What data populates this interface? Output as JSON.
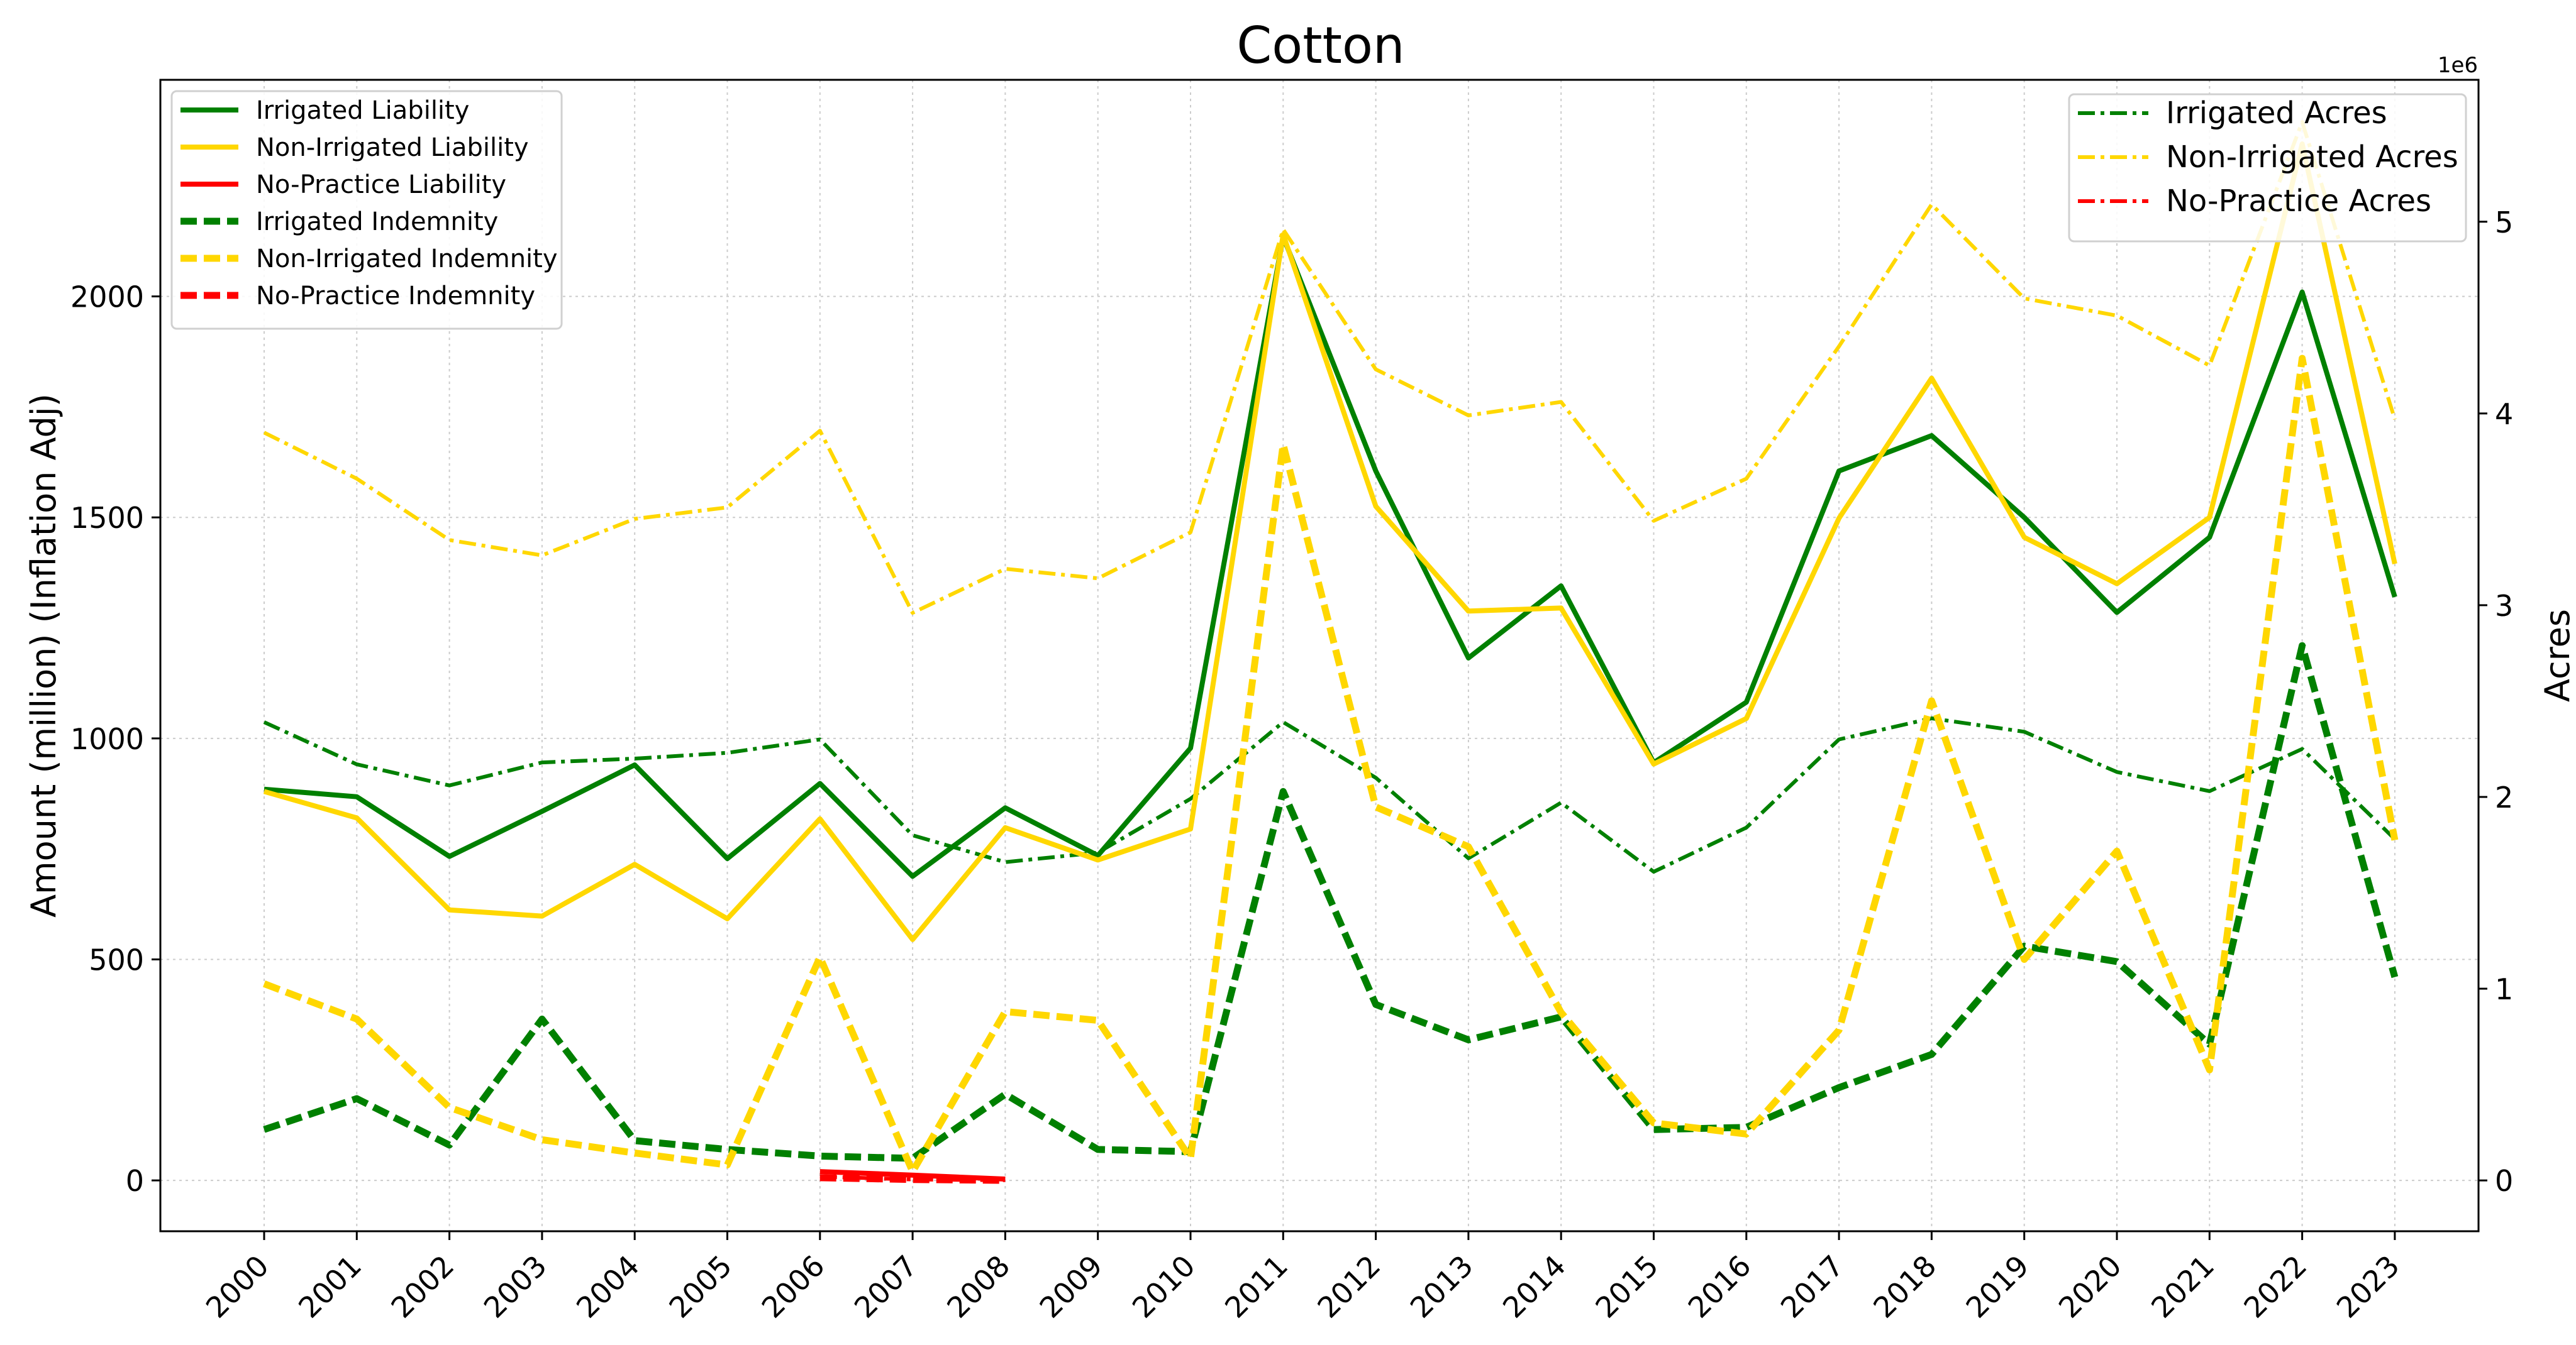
{
  "chart_data": {
    "type": "line",
    "title": "Cotton",
    "xlabel": "",
    "ylabel_left": "Amount (million) (Inflation Adj)",
    "ylabel_right": "Acres",
    "right_axis_multiplier": "1e6",
    "categories": [
      "2000",
      "2001",
      "2002",
      "2003",
      "2004",
      "2005",
      "2006",
      "2007",
      "2008",
      "2009",
      "2010",
      "2011",
      "2012",
      "2013",
      "2014",
      "2015",
      "2016",
      "2017",
      "2018",
      "2019",
      "2020",
      "2021",
      "2022",
      "2023"
    ],
    "ylim_left": [
      -115,
      2490
    ],
    "ylim_right": [
      -265000,
      5740000
    ],
    "left_ticks": [
      0,
      500,
      1000,
      1500,
      2000
    ],
    "right_ticks": [
      0,
      1000000,
      2000000,
      3000000,
      4000000,
      5000000
    ],
    "right_tick_labels": [
      "0",
      "1",
      "2",
      "3",
      "4",
      "5"
    ],
    "grid": true,
    "legend_left_position": "top-left",
    "legend_right_position": "top-right",
    "series_left": [
      {
        "name": "Irrigated Liability",
        "color": "#008000",
        "style": "solid",
        "values": [
          885,
          868,
          733,
          835,
          940,
          728,
          898,
          688,
          843,
          735,
          978,
          2135,
          1605,
          1182,
          1345,
          945,
          1082,
          1605,
          1685,
          1500,
          1285,
          1455,
          2010,
          1320
        ]
      },
      {
        "name": "Non-Irrigated Liability",
        "color": "#FFD700",
        "style": "solid",
        "values": [
          880,
          820,
          612,
          598,
          715,
          592,
          818,
          545,
          798,
          725,
          795,
          2140,
          1525,
          1288,
          1295,
          942,
          1045,
          1498,
          1815,
          1455,
          1350,
          1500,
          2345,
          1395
        ]
      },
      {
        "name": "No-Practice Liability",
        "color": "#FF0000",
        "style": "solid",
        "offset": 6,
        "values": [
          20,
          12,
          3
        ]
      },
      {
        "name": "Irrigated Indemnity",
        "color": "#008000",
        "style": "dashed",
        "values": [
          115,
          185,
          80,
          365,
          90,
          70,
          55,
          50,
          195,
          70,
          65,
          880,
          398,
          318,
          370,
          115,
          120,
          210,
          285,
          530,
          495,
          308,
          1210,
          460
        ]
      },
      {
        "name": "Non-Irrigated Indemnity",
        "color": "#FFD700",
        "style": "dashed",
        "values": [
          445,
          365,
          165,
          92,
          62,
          35,
          505,
          20,
          382,
          362,
          50,
          1665,
          845,
          755,
          380,
          130,
          105,
          340,
          1085,
          500,
          745,
          250,
          1860,
          770
        ]
      },
      {
        "name": "No-Practice Indemnity",
        "color": "#FF0000",
        "style": "dashed",
        "offset": 6,
        "values": [
          6,
          2,
          0
        ]
      }
    ],
    "series_right": [
      {
        "name": "Irrigated Acres",
        "color": "#008000",
        "style": "dashdot",
        "values": [
          2390000,
          2170000,
          2060000,
          2180000,
          2200000,
          2230000,
          2300000,
          1800000,
          1660000,
          1710000,
          1990000,
          2390000,
          2100000,
          1680000,
          1970000,
          1610000,
          1840000,
          2300000,
          2410000,
          2340000,
          2130000,
          2030000,
          2250000,
          1780000
        ]
      },
      {
        "name": "Non-Irrigated Acres",
        "color": "#FFD700",
        "style": "dashdot",
        "values": [
          3900000,
          3660000,
          3340000,
          3260000,
          3450000,
          3510000,
          3910000,
          2960000,
          3190000,
          3140000,
          3380000,
          4960000,
          4230000,
          3990000,
          4060000,
          3440000,
          3660000,
          4350000,
          5090000,
          4600000,
          4510000,
          4250000,
          5520000,
          3970000
        ]
      },
      {
        "name": "No-Practice Acres",
        "color": "#FF0000",
        "style": "dashdot",
        "offset": 6,
        "values": [
          20000,
          5000,
          1000
        ]
      }
    ]
  }
}
